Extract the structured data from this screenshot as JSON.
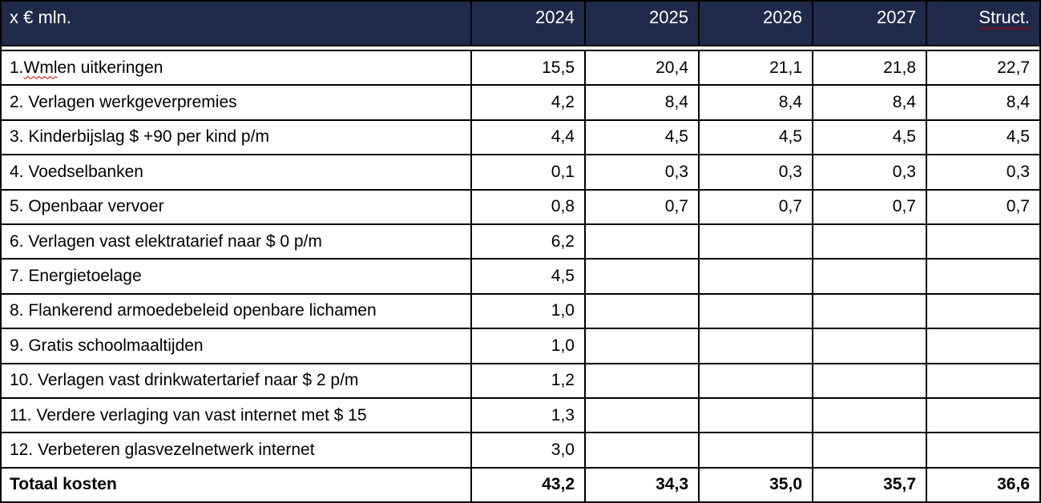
{
  "table": {
    "unit_label": "x € mln.",
    "columns": [
      {
        "label": "2024",
        "squiggle": false
      },
      {
        "label": "2025",
        "squiggle": false
      },
      {
        "label": "2026",
        "squiggle": false
      },
      {
        "label": "2027",
        "squiggle": false
      },
      {
        "label": "Struct.",
        "squiggle": true
      }
    ],
    "rows": [
      {
        "label": "1. Wml en uitkeringen",
        "squiggle_word": "Wml",
        "values": [
          "15,5",
          "20,4",
          "21,1",
          "21,8",
          "22,7"
        ]
      },
      {
        "label": "2. Verlagen werkgeverpremies",
        "values": [
          "4,2",
          "8,4",
          "8,4",
          "8,4",
          "8,4"
        ]
      },
      {
        "label": "3. Kinderbijslag $ +90 per kind p/m",
        "values": [
          "4,4",
          "4,5",
          "4,5",
          "4,5",
          "4,5"
        ]
      },
      {
        "label": "4. Voedselbanken",
        "values": [
          "0,1",
          "0,3",
          "0,3",
          "0,3",
          "0,3"
        ]
      },
      {
        "label": "5. Openbaar vervoer",
        "values": [
          "0,8",
          "0,7",
          "0,7",
          "0,7",
          "0,7"
        ]
      },
      {
        "label": "6. Verlagen vast elektratarief naar $ 0 p/m",
        "values": [
          "6,2",
          "",
          "",
          "",
          ""
        ]
      },
      {
        "label": "7. Energietoelage",
        "values": [
          "4,5",
          "",
          "",
          "",
          ""
        ]
      },
      {
        "label": "8. Flankerend armoedebeleid openbare lichamen",
        "values": [
          "1,0",
          "",
          "",
          "",
          ""
        ]
      },
      {
        "label": "9. Gratis schoolmaaltijden",
        "values": [
          "1,0",
          "",
          "",
          "",
          ""
        ]
      },
      {
        "label": "10. Verlagen vast drinkwatertarief naar $ 2 p/m",
        "values": [
          "1,2",
          "",
          "",
          "",
          ""
        ]
      },
      {
        "label": "11. Verdere verlaging van vast internet met $ 15",
        "values": [
          "1,3",
          "",
          "",
          "",
          ""
        ]
      },
      {
        "label": "12. Verbeteren glasvezelnetwerk internet",
        "values": [
          "3,0",
          "",
          "",
          "",
          ""
        ]
      }
    ],
    "total_row": {
      "label": "Totaal kosten",
      "values": [
        "43,2",
        "34,3",
        "35,0",
        "35,7",
        "36,6"
      ]
    }
  },
  "colors": {
    "header_bg": "#1F2A4B",
    "border": "#000000",
    "squiggle": "#C00000"
  }
}
